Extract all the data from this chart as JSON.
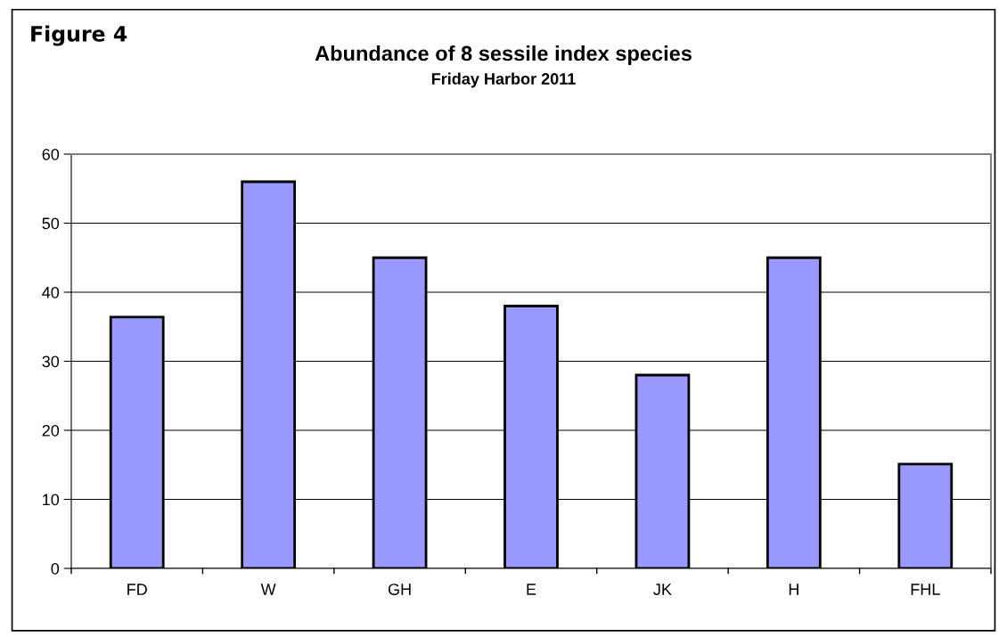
{
  "chart_data": {
    "type": "bar",
    "title": "Abundance of 8 sessile index species",
    "subtitle": "Friday Harbor 2011",
    "annotations": [
      "Figure 4"
    ],
    "categories": [
      "FD",
      "W",
      "GH",
      "E",
      "JK",
      "H",
      "FHL"
    ],
    "values": [
      36.4,
      56,
      45,
      38,
      28,
      45,
      15.1
    ],
    "color": "#9999ff",
    "ylim": [
      0,
      60
    ],
    "yticks": [
      0,
      10,
      20,
      30,
      40,
      50,
      60
    ],
    "grid": "y",
    "legend": false
  }
}
